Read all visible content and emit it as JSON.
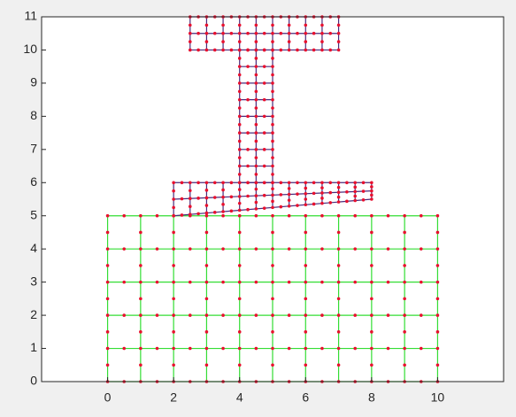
{
  "chart_data": {
    "type": "mesh",
    "xlim": [
      -2,
      12
    ],
    "ylim": [
      0,
      11
    ],
    "xticks": [
      0,
      2,
      4,
      6,
      8,
      10
    ],
    "yticks": [
      0,
      1,
      2,
      3,
      4,
      5,
      6,
      7,
      8,
      9,
      10,
      11
    ],
    "node_color": "#e8102e",
    "meshes": [
      {
        "corners": [
          [
            0,
            0
          ],
          [
            10,
            0
          ],
          [
            10,
            5
          ],
          [
            0,
            5
          ]
        ],
        "nx": 10,
        "ny": 5,
        "color": "#33dd33"
      },
      {
        "corners": [
          [
            2,
            5
          ],
          [
            8,
            5.5
          ],
          [
            8,
            6
          ],
          [
            2,
            6
          ]
        ],
        "nx": 12,
        "ny": 2,
        "color": "#4a2a7a"
      },
      {
        "corners": [
          [
            4,
            6
          ],
          [
            5,
            6
          ],
          [
            5,
            10
          ],
          [
            4,
            10
          ]
        ],
        "nx": 2,
        "ny": 8,
        "color": "#4a2a7a"
      },
      {
        "corners": [
          [
            2.5,
            10
          ],
          [
            7,
            10
          ],
          [
            7,
            11
          ],
          [
            2.5,
            11
          ]
        ],
        "nx": 9,
        "ny": 2,
        "color": "#4a2a7a"
      }
    ]
  }
}
